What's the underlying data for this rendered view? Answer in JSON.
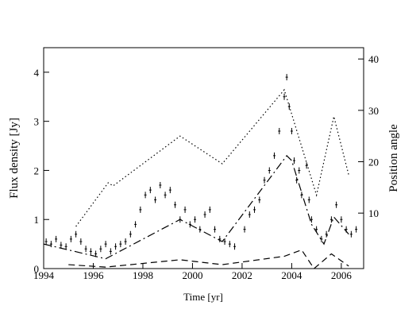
{
  "chart_data": {
    "type": "scatter",
    "xlabel": "Time [yr]",
    "ylabel": "Flux density  [Jy]",
    "y2label": "Position angle",
    "xlim": [
      1994,
      2006.9
    ],
    "xticks": [
      1994,
      1996,
      1998,
      2000,
      2002,
      2004,
      2006
    ],
    "ylim": [
      0,
      4.5
    ],
    "yticks": [
      0,
      1,
      2,
      3,
      4
    ],
    "y2lim": [
      -0.8,
      42.2
    ],
    "y2ticks": [
      10,
      20,
      30,
      40
    ],
    "x": [
      1994.1,
      1994.3,
      1994.5,
      1994.7,
      1994.9,
      1995.1,
      1995.3,
      1995.5,
      1995.7,
      1995.9,
      1996.1,
      1996.3,
      1996.5,
      1996.7,
      1996.9,
      1997.1,
      1997.3,
      1997.5,
      1997.7,
      1997.9,
      1998.1,
      1998.3,
      1998.5,
      1998.7,
      1998.9,
      1999.1,
      1999.3,
      1999.5,
      1999.7,
      1999.9,
      2000.1,
      2000.3,
      2000.5,
      2000.7,
      2000.9,
      2001.1,
      2001.3,
      2001.5,
      2001.7,
      2002.1,
      2002.3,
      2002.5,
      2002.7,
      2002.9,
      2003.1,
      2003.3,
      2003.5,
      2003.7,
      2003.8,
      2003.9,
      2004.0,
      2004.1,
      2004.2,
      2004.3,
      2004.4,
      2004.6,
      2004.7,
      2004.8,
      2005.0,
      2005.2,
      2005.4,
      2005.6,
      2005.8,
      2006.0,
      2006.2,
      2006.4,
      2006.6
    ],
    "values": [
      0.55,
      0.5,
      0.6,
      0.48,
      0.45,
      0.6,
      0.7,
      0.55,
      0.4,
      0.35,
      0.3,
      0.4,
      0.5,
      0.35,
      0.45,
      0.5,
      0.55,
      0.7,
      0.9,
      1.2,
      1.5,
      1.6,
      1.4,
      1.7,
      1.5,
      1.6,
      1.3,
      1.0,
      1.2,
      0.9,
      1.0,
      0.8,
      1.1,
      1.2,
      0.8,
      0.6,
      0.55,
      0.5,
      0.45,
      0.8,
      1.1,
      1.2,
      1.4,
      1.8,
      2.0,
      2.3,
      2.8,
      3.5,
      3.9,
      3.3,
      2.8,
      2.2,
      1.8,
      2.0,
      1.5,
      2.1,
      1.4,
      1.0,
      0.8,
      0.6,
      0.7,
      1.0,
      1.3,
      1.0,
      0.8,
      0.7,
      0.8
    ],
    "color": "#000000",
    "lines": [
      {
        "style": "dotted",
        "axis": "y2",
        "x": [
          1995.3,
          1996.6,
          1996.8,
          1999.5,
          2001.2,
          2003.7,
          2005.0,
          2005.7,
          2006.3
        ],
        "values": [
          7.4,
          15.9,
          15.3,
          25,
          19.6,
          34,
          13.5,
          28.8,
          17.4
        ]
      },
      {
        "style": "dashdot",
        "axis": "y",
        "x": [
          1994.0,
          1996.5,
          1999.5,
          2001.2,
          2003.8,
          2004.0,
          2004.8,
          2005.3,
          2005.7,
          2006.3
        ],
        "values": [
          0.5,
          0.2,
          1.0,
          0.55,
          2.3,
          2.2,
          0.9,
          0.5,
          1.05,
          0.7
        ]
      },
      {
        "style": "dashed",
        "axis": "y",
        "x": [
          1995.0,
          1996.5,
          1999.5,
          2001.2,
          2003.7,
          2004.4,
          2004.9,
          2005.6,
          2006.3
        ],
        "values": [
          0.08,
          0.03,
          0.18,
          0.08,
          0.25,
          0.38,
          0.0,
          0.3,
          0.05
        ]
      }
    ]
  }
}
